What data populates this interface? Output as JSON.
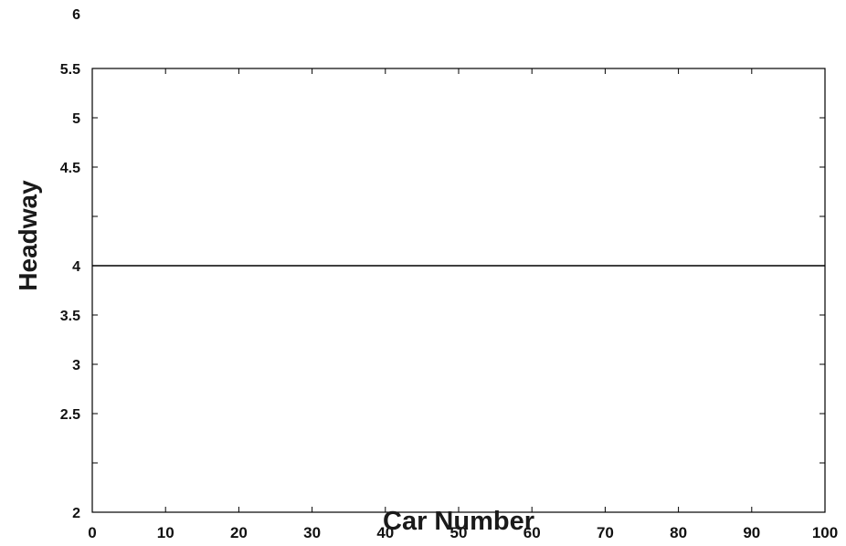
{
  "chart_data": {
    "type": "line",
    "title": "",
    "xlabel": "Car Number",
    "ylabel": "Headway",
    "xlim": [
      0,
      100
    ],
    "x_ticks": [
      {
        "value": 0,
        "label": "0"
      },
      {
        "value": 10,
        "label": "10"
      },
      {
        "value": 20,
        "label": "20"
      },
      {
        "value": 30,
        "label": "30"
      },
      {
        "value": 40,
        "label": "40"
      },
      {
        "value": 50,
        "label": "50"
      },
      {
        "value": 60,
        "label": "60"
      },
      {
        "value": 70,
        "label": "70"
      },
      {
        "value": 80,
        "label": "80"
      },
      {
        "value": 90,
        "label": "90"
      },
      {
        "value": 100,
        "label": "100"
      }
    ],
    "y_ticks": [
      {
        "label": "6",
        "outside_frame": true
      },
      {
        "label": "5.5"
      },
      {
        "label": "5"
      },
      {
        "label": "4.5"
      },
      {
        "label": ""
      },
      {
        "label": "4"
      },
      {
        "label": "3.5"
      },
      {
        "label": "3"
      },
      {
        "label": "2.5"
      },
      {
        "label": ""
      },
      {
        "label": "2"
      }
    ],
    "grid": false,
    "series": [
      {
        "color": "#000000",
        "x": [
          0,
          100
        ],
        "y": [
          4,
          4
        ]
      }
    ]
  }
}
